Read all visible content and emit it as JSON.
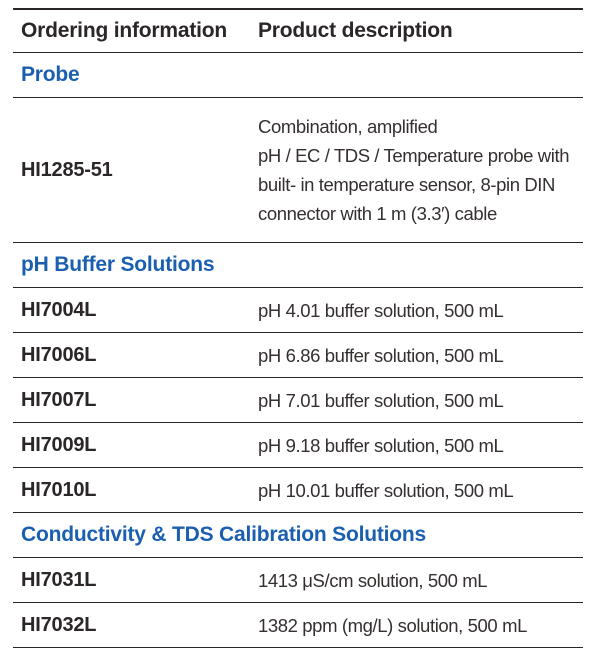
{
  "colors": {
    "accent_blue": "#1a5fb0",
    "text_dark": "#2b2628",
    "line_dark": "#2b2728",
    "background": "#ffffff"
  },
  "table": {
    "columns": {
      "col1": "Ordering information",
      "col2": "Product description"
    },
    "sections": [
      {
        "title": "Probe",
        "rows": [
          {
            "code": "HI1285-51",
            "description": "Combination, amplified\npH / EC / TDS / Temperature probe with\nbuilt- in temperature sensor, 8-pin DIN\nconnector with 1 m (3.3′) cable"
          }
        ]
      },
      {
        "title": "pH Buffer Solutions",
        "rows": [
          {
            "code": "HI7004L",
            "description": "pH 4.01 buffer solution, 500 mL"
          },
          {
            "code": "HI7006L",
            "description": "pH 6.86 buffer solution, 500 mL"
          },
          {
            "code": "HI7007L",
            "description": "pH 7.01 buffer solution, 500 mL"
          },
          {
            "code": "HI7009L",
            "description": "pH 9.18 buffer solution, 500 mL"
          },
          {
            "code": "HI7010L",
            "description": "pH 10.01 buffer solution, 500 mL"
          }
        ]
      },
      {
        "title": "Conductivity & TDS Calibration Solutions",
        "rows": [
          {
            "code": "HI7031L",
            "description": "1413 μS/cm solution, 500 mL"
          },
          {
            "code": "HI7032L",
            "description": "1382 ppm (mg/L) solution, 500 mL"
          }
        ]
      }
    ]
  }
}
